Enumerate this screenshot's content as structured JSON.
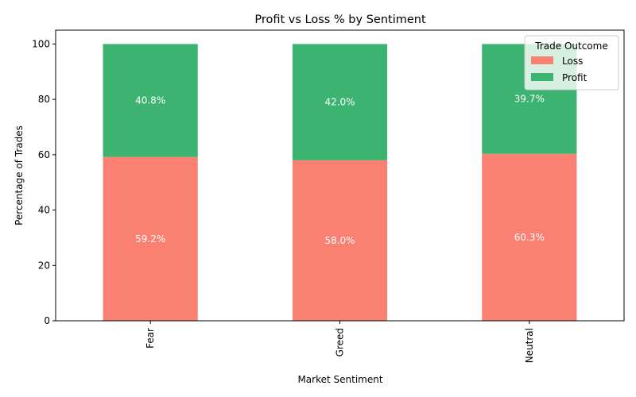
{
  "chart_data": {
    "type": "bar",
    "stacked": true,
    "title": "Profit vs Loss % by Sentiment",
    "xlabel": "Market Sentiment",
    "ylabel": "Percentage of Trades",
    "categories": [
      "Fear",
      "Greed",
      "Neutral"
    ],
    "series": [
      {
        "name": "Loss",
        "values": [
          59.2,
          58.0,
          60.3
        ],
        "labels": [
          "59.2%",
          "58.0%",
          "60.3%"
        ],
        "color": "#fa8072"
      },
      {
        "name": "Profit",
        "values": [
          40.8,
          42.0,
          39.7
        ],
        "labels": [
          "40.8%",
          "42.0%",
          "39.7%"
        ],
        "color": "#3cb371"
      }
    ],
    "ylim": [
      0,
      105
    ],
    "yticks": [
      0,
      20,
      40,
      60,
      80,
      100
    ],
    "grid": false,
    "legend": {
      "title": "Trade Outcome",
      "placement": "top-right"
    }
  }
}
